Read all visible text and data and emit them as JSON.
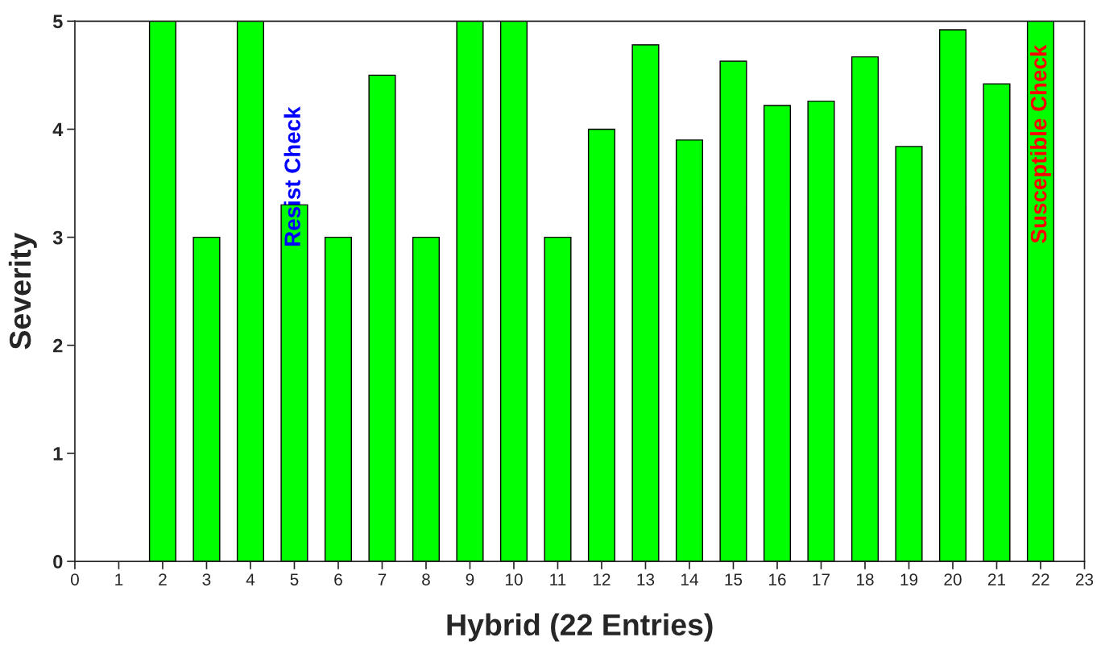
{
  "chart_data": {
    "type": "bar",
    "xlabel": "Hybrid (22 Entries)",
    "ylabel": "Severity",
    "x": [
      2,
      3,
      4,
      5,
      6,
      7,
      8,
      9,
      10,
      11,
      12,
      13,
      14,
      15,
      16,
      17,
      18,
      19,
      20,
      21,
      22
    ],
    "values": [
      5,
      3,
      5,
      3.3,
      3,
      4.5,
      3,
      5,
      5,
      3,
      4.0,
      4.78,
      3.9,
      4.63,
      4.22,
      4.26,
      4.67,
      3.84,
      4.92,
      4.42,
      5
    ],
    "color": "#00ff00",
    "xlim": [
      0,
      23
    ],
    "xticks": [
      0,
      1,
      2,
      3,
      4,
      5,
      6,
      7,
      8,
      9,
      10,
      11,
      12,
      13,
      14,
      15,
      16,
      17,
      18,
      19,
      20,
      21,
      22,
      23
    ],
    "ylim": [
      0,
      5
    ],
    "yticks": [
      0,
      1,
      2,
      3,
      4,
      5
    ],
    "grid": false,
    "legend": false,
    "annotations": [
      {
        "text": "Resist Check",
        "x": 5,
        "y": 3.3
      },
      {
        "text": "Susceptible Check",
        "x": 22,
        "y": 5
      }
    ]
  }
}
